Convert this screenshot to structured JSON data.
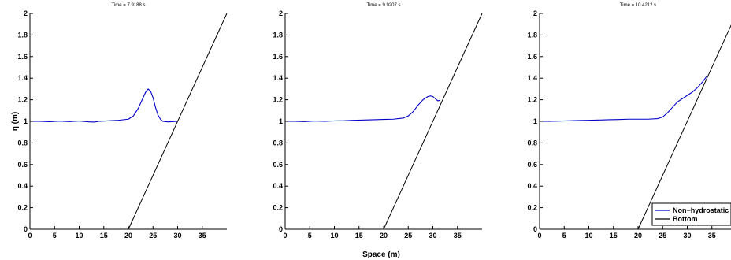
{
  "figure": {
    "ylabel": "η (m)",
    "xlabel": "Space (m)"
  },
  "colors": {
    "surface": "#0000cc",
    "bottom": "#000000",
    "axes": "#000000"
  },
  "legend": {
    "placement": "bottom-right",
    "entries": [
      "Non−hydrostatic",
      "Bottom"
    ]
  },
  "chart_data": [
    {
      "type": "line",
      "title": "Time = 7.9188 s",
      "xlim": [
        0,
        40
      ],
      "ylim": [
        0,
        2
      ],
      "xticks": [
        "0",
        "5",
        "10",
        "15",
        "20",
        "25",
        "30",
        "35"
      ],
      "yticks": [
        "0",
        "0.2",
        "0.4",
        "0.6",
        "0.8",
        "1",
        "1.2",
        "1.4",
        "1.6",
        "1.8",
        "2"
      ],
      "series": [
        {
          "name": "Non−hydrostatic",
          "color": "#0000cc",
          "x": [
            0,
            2,
            4,
            6,
            8,
            10,
            12,
            13,
            14,
            16,
            18,
            20,
            21,
            22,
            23,
            23.5,
            24,
            24.5,
            25,
            25.5,
            26,
            26.5,
            27,
            28,
            29,
            30
          ],
          "y": [
            1.0,
            1.0,
            0.997,
            1.002,
            0.998,
            1.003,
            0.995,
            0.993,
            1.0,
            1.005,
            1.01,
            1.02,
            1.05,
            1.12,
            1.22,
            1.27,
            1.3,
            1.28,
            1.22,
            1.13,
            1.06,
            1.02,
            1.0,
            0.995,
            0.998,
            1.0
          ]
        },
        {
          "name": "Bottom",
          "color": "#000000",
          "x": [
            0,
            20,
            40
          ],
          "y": [
            0,
            0,
            2
          ]
        }
      ]
    },
    {
      "type": "line",
      "title": "Time = 9.9207 s",
      "xlim": [
        0,
        40
      ],
      "ylim": [
        0,
        2
      ],
      "xticks": [
        "0",
        "5",
        "10",
        "15",
        "20",
        "25",
        "30",
        "35"
      ],
      "yticks": [
        "0",
        "0.2",
        "0.4",
        "0.6",
        "0.8",
        "1",
        "1.2",
        "1.4",
        "1.6",
        "1.8",
        "2"
      ],
      "series": [
        {
          "name": "Non−hydrostatic",
          "color": "#0000cc",
          "x": [
            0,
            2,
            4,
            6,
            8,
            10,
            12,
            14,
            16,
            18,
            20,
            22,
            24,
            25,
            26,
            27,
            28,
            29,
            29.5,
            30,
            30.5,
            31,
            31.5
          ],
          "y": [
            1.0,
            1.0,
            0.998,
            1.003,
            1.0,
            1.004,
            1.006,
            1.01,
            1.012,
            1.015,
            1.018,
            1.02,
            1.03,
            1.05,
            1.09,
            1.15,
            1.2,
            1.23,
            1.235,
            1.23,
            1.21,
            1.19,
            1.195
          ]
        },
        {
          "name": "Bottom",
          "color": "#000000",
          "x": [
            0,
            20,
            40
          ],
          "y": [
            0,
            0,
            2
          ]
        }
      ]
    },
    {
      "type": "line",
      "title": "Time = 10.4212 s",
      "xlim": [
        0,
        40
      ],
      "ylim": [
        0,
        2
      ],
      "xticks": [
        "0",
        "5",
        "10",
        "15",
        "20",
        "25",
        "30",
        "35"
      ],
      "yticks": [
        "0",
        "0.2",
        "0.4",
        "0.6",
        "0.8",
        "1",
        "1.2",
        "1.4",
        "1.6",
        "1.8",
        "2"
      ],
      "series": [
        {
          "name": "Non−hydrostatic",
          "color": "#0000cc",
          "x": [
            0,
            2,
            4,
            6,
            8,
            10,
            12,
            14,
            16,
            18,
            20,
            22,
            24,
            25,
            26,
            27,
            28,
            29,
            30,
            31,
            32,
            33,
            34
          ],
          "y": [
            1.0,
            1.0,
            1.002,
            1.005,
            1.008,
            1.01,
            1.012,
            1.015,
            1.017,
            1.02,
            1.02,
            1.02,
            1.025,
            1.04,
            1.08,
            1.13,
            1.18,
            1.21,
            1.24,
            1.27,
            1.31,
            1.36,
            1.42
          ]
        },
        {
          "name": "Bottom",
          "color": "#000000",
          "x": [
            0,
            20,
            40
          ],
          "y": [
            0,
            0,
            2
          ]
        }
      ]
    }
  ]
}
